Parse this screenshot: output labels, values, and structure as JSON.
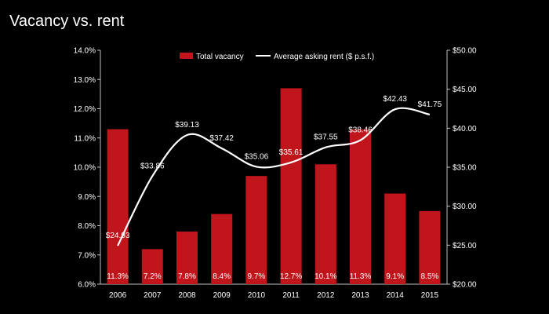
{
  "chart_data": {
    "type": "bar",
    "title": "Vacancy vs. rent",
    "categories": [
      "2006",
      "2007",
      "2008",
      "2009",
      "2010",
      "2011",
      "2012",
      "2013",
      "2014",
      "2015"
    ],
    "series": [
      {
        "name": "Total vacancy",
        "kind": "bar",
        "axis": "left",
        "color": "#c0151b",
        "values": [
          11.3,
          7.2,
          7.8,
          8.4,
          9.7,
          12.7,
          10.1,
          11.3,
          9.1,
          8.5
        ],
        "labels": [
          "11.3%",
          "7.2%",
          "7.8%",
          "8.4%",
          "9.7%",
          "12.7%",
          "10.1%",
          "11.3%",
          "9.1%",
          "8.5%"
        ]
      },
      {
        "name": "Average asking rent ($ p.s.f.)",
        "kind": "line",
        "axis": "right",
        "color": "#ffffff",
        "values": [
          24.93,
          33.86,
          39.13,
          37.42,
          35.06,
          35.61,
          37.55,
          38.46,
          42.43,
          41.75
        ],
        "labels": [
          "$24.93",
          "$33.86",
          "$39.13",
          "$37.42",
          "$35.06",
          "$35.61",
          "$37.55",
          "$38.46",
          "$42.43",
          "$41.75"
        ]
      }
    ],
    "y_left": {
      "min": 6.0,
      "max": 14.0,
      "ticks": [
        "6.0%",
        "7.0%",
        "8.0%",
        "9.0%",
        "10.0%",
        "11.0%",
        "12.0%",
        "13.0%",
        "14.0%"
      ]
    },
    "y_right": {
      "min": 20,
      "max": 50,
      "ticks": [
        "$20.00",
        "$25.00",
        "$30.00",
        "$35.00",
        "$40.00",
        "$45.00",
        "$50.00"
      ]
    },
    "legend_position": "top",
    "grid": false
  }
}
